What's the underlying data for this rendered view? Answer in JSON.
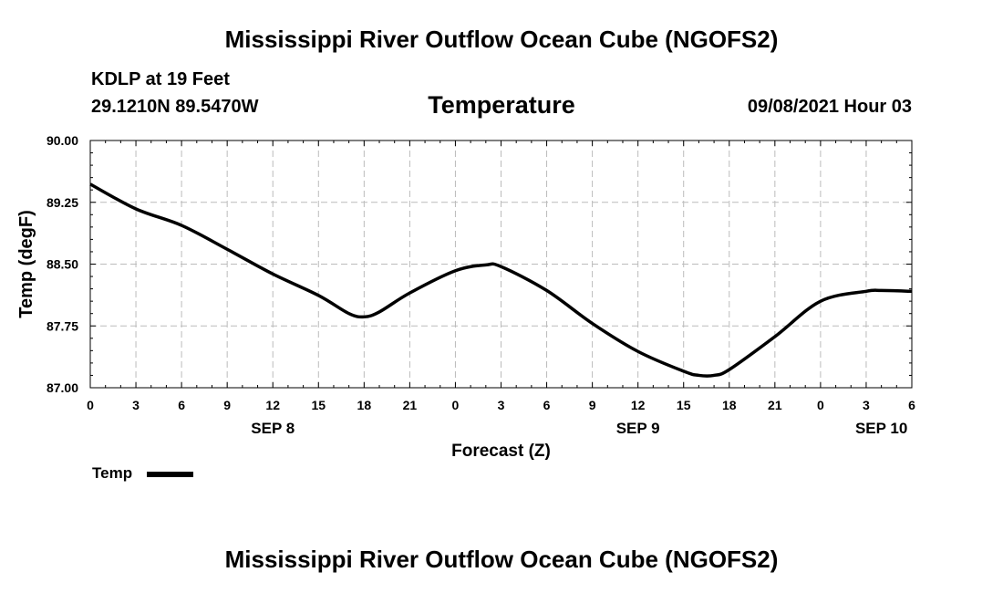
{
  "header": {
    "title": "Mississippi River Outflow Ocean Cube (NGOFS2)",
    "station": "KDLP at 19 Feet",
    "coordinates": "29.1210N  89.5470W",
    "variable": "Temperature",
    "datetime": "09/08/2021 Hour 03"
  },
  "footer": {
    "title": "Mississippi River Outflow Ocean Cube (NGOFS2)"
  },
  "legend": {
    "label": "Temp"
  },
  "chart_data": {
    "type": "line",
    "title": "Temperature",
    "xlabel": "Forecast (Z)",
    "ylabel": "Temp (degF)",
    "xlim": [
      0,
      54
    ],
    "ylim": [
      87.0,
      90.0
    ],
    "grid": true,
    "legend_position": "bottom-left",
    "y_ticks": [
      "87.00",
      "87.75",
      "88.50",
      "89.25",
      "90.00"
    ],
    "x_ticks": [
      "0",
      "3",
      "6",
      "9",
      "12",
      "15",
      "18",
      "21",
      "0",
      "3",
      "6",
      "9",
      "12",
      "15",
      "18",
      "21",
      "0",
      "3",
      "6"
    ],
    "day_labels": [
      "SEP 8",
      "SEP 9",
      "SEP 10"
    ],
    "series": [
      {
        "name": "Temp",
        "x": [
          0,
          3,
          6,
          9,
          12,
          15,
          17,
          18,
          19,
          21,
          24,
          26,
          27,
          30,
          33,
          36,
          39,
          40,
          41,
          42,
          45,
          48,
          51,
          52,
          54
        ],
        "y": [
          89.47,
          89.17,
          88.97,
          88.68,
          88.38,
          88.12,
          87.9,
          87.86,
          87.92,
          88.15,
          88.42,
          88.49,
          88.47,
          88.18,
          87.78,
          87.44,
          87.2,
          87.15,
          87.15,
          87.22,
          87.62,
          88.05,
          88.17,
          88.18,
          88.17
        ]
      }
    ]
  }
}
